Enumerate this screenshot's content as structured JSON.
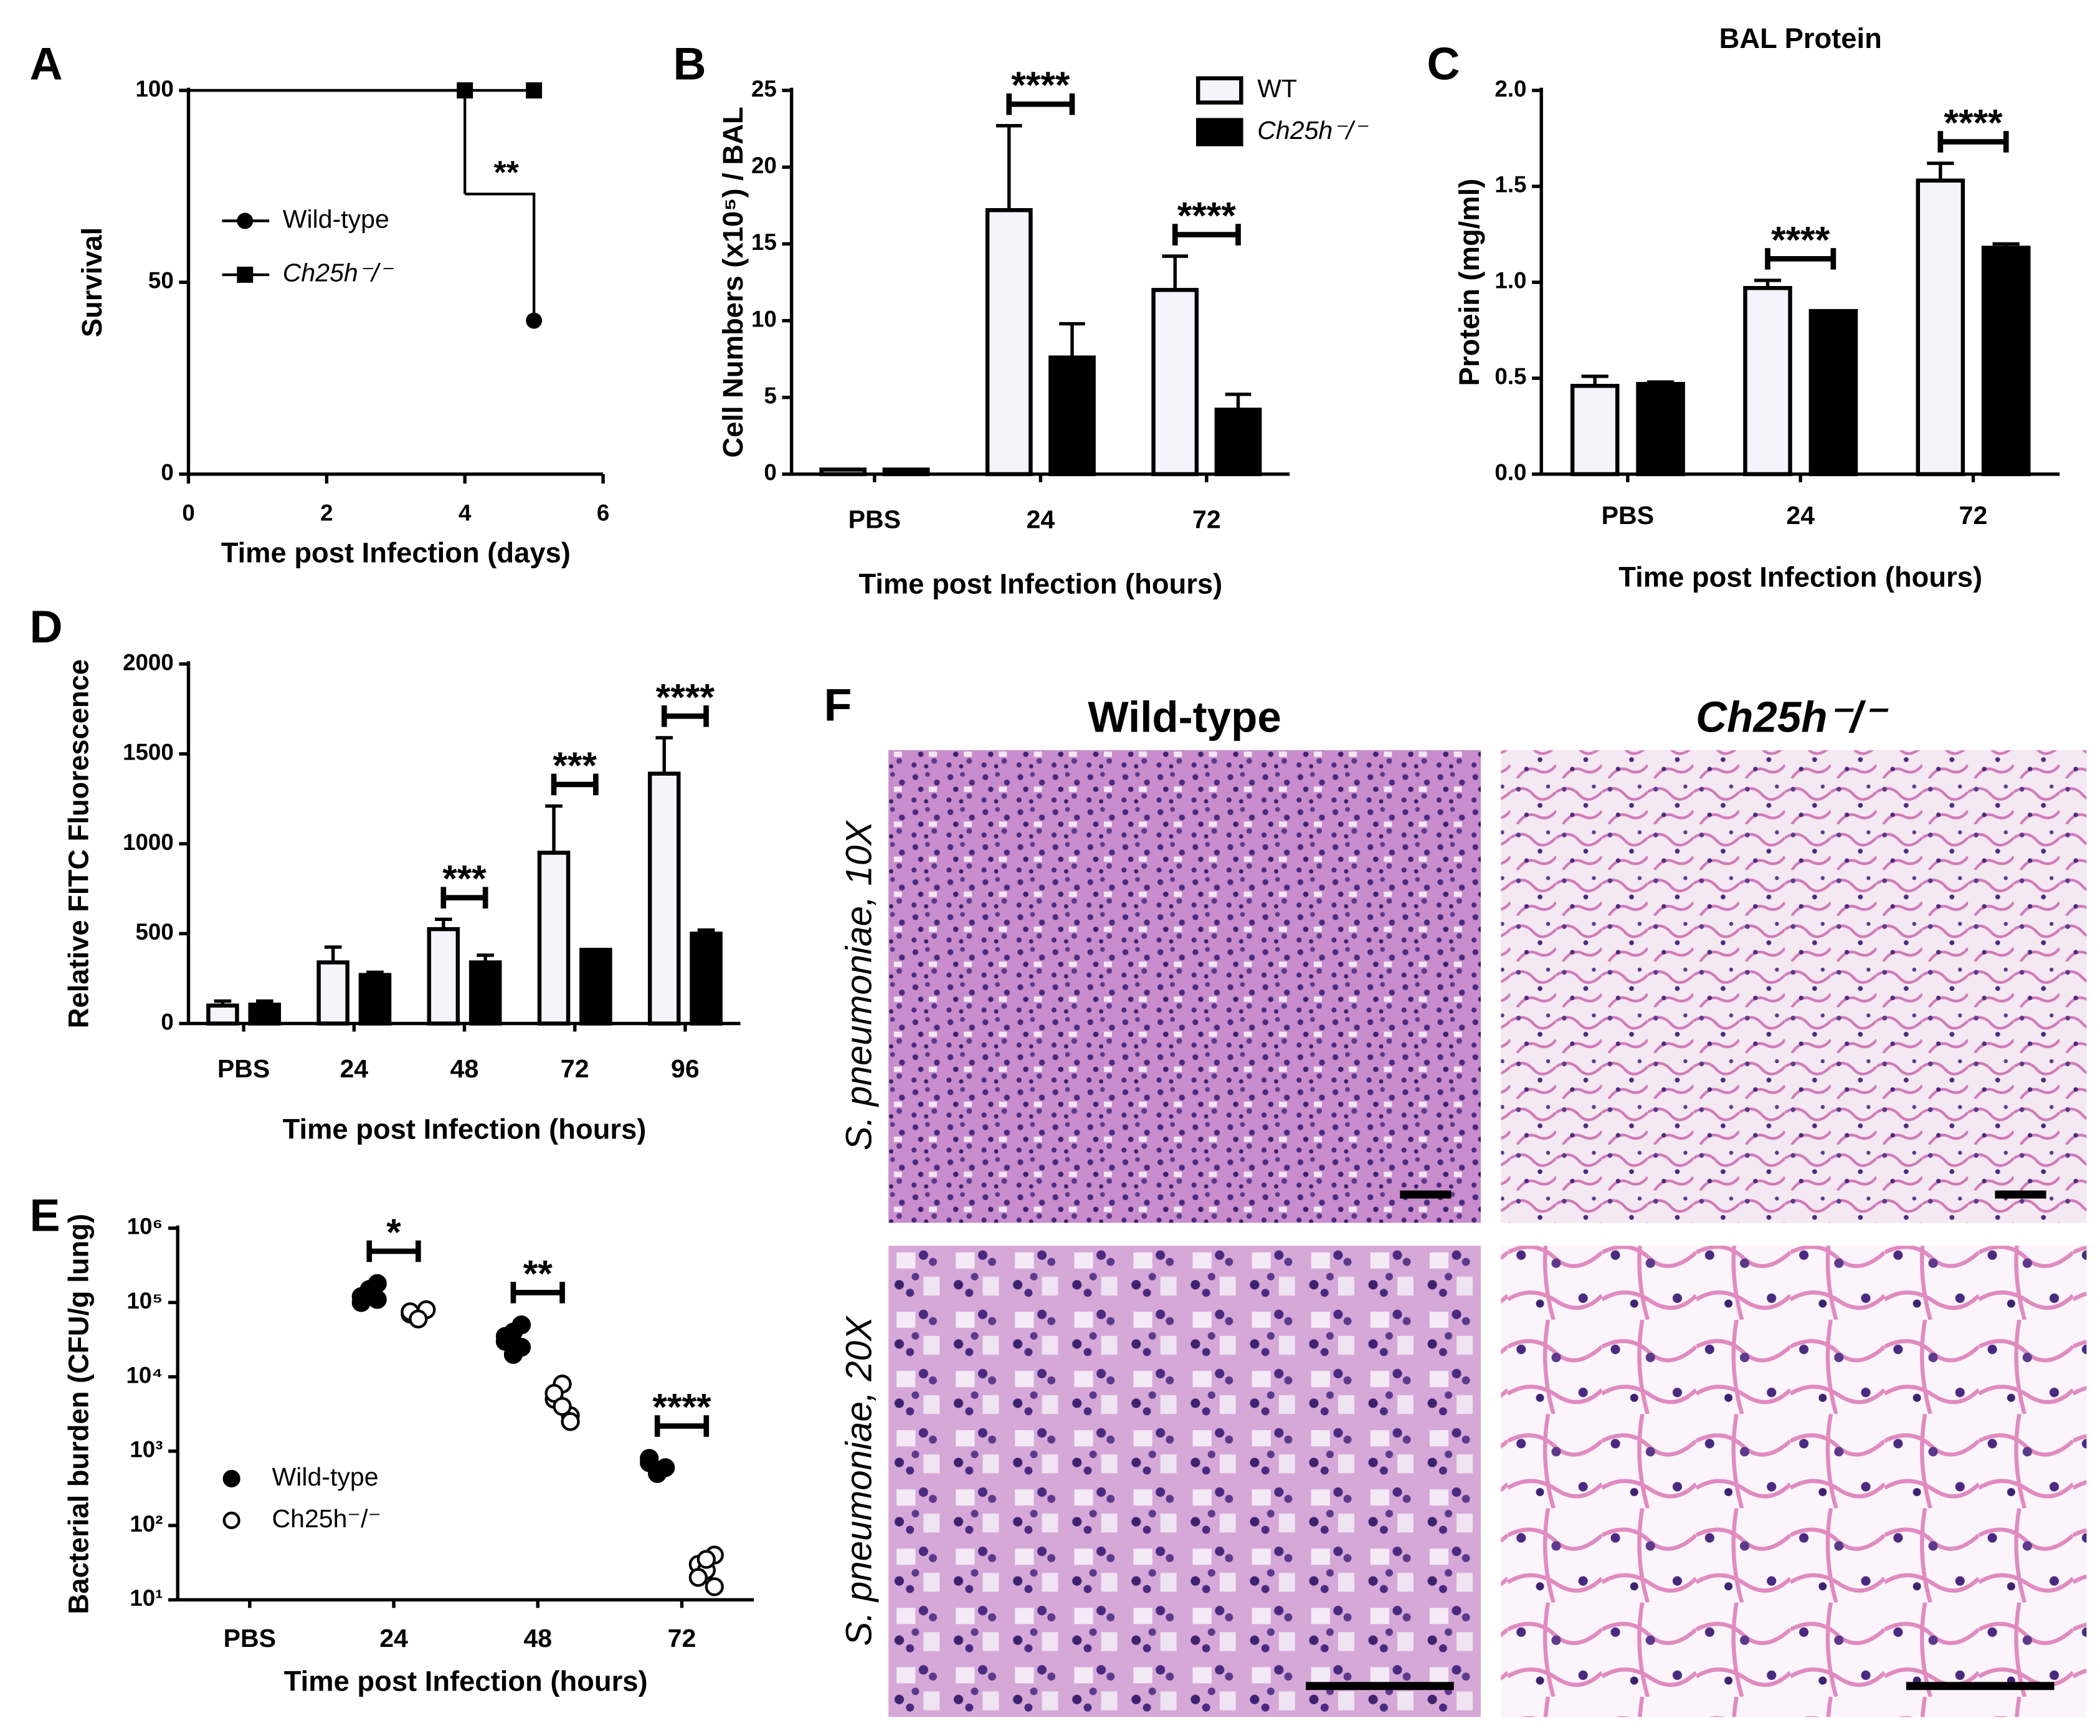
{
  "chart_data": [
    {
      "panel": "A",
      "type": "survival",
      "xlabel": "Time post Infection (days)",
      "ylabel": "Survival",
      "xlim": [
        0,
        6
      ],
      "xticks": [
        0,
        2,
        4,
        6
      ],
      "ylim": [
        0,
        100
      ],
      "yticks": [
        0,
        50,
        100
      ],
      "legend": "center-left",
      "series": [
        {
          "name": "Wild-type",
          "color": "#000000",
          "marker": "circle",
          "x": [
            0,
            4,
            5
          ],
          "values": [
            100,
            73,
            40
          ]
        },
        {
          "name": "Ch25h⁻/⁻",
          "color": "#000000",
          "marker": "square",
          "italic": true,
          "x": [
            0,
            4,
            5
          ],
          "values": [
            100,
            100,
            100
          ]
        }
      ],
      "annotations": [
        {
          "text": "**",
          "x": 4.6,
          "y": 78
        }
      ]
    },
    {
      "panel": "B",
      "type": "bar",
      "xlabel": "Time post Infection (hours)",
      "ylabel": "Cell Numbers (x10⁵) / BAL",
      "categories": [
        "PBS",
        "24",
        "72"
      ],
      "ylim": [
        0,
        25
      ],
      "yticks": [
        0,
        5,
        10,
        15,
        20,
        25
      ],
      "legend": "upper-right",
      "series": [
        {
          "name": "WT",
          "color": "#f5f3fb",
          "values": [
            0.3,
            17.2,
            12
          ],
          "errors": [
            0,
            5.5,
            2.2
          ]
        },
        {
          "name": "Ch25h⁻/⁻",
          "color": "#000000",
          "italic": true,
          "values": [
            0.3,
            7.6,
            4.2
          ],
          "errors": [
            0,
            2.2,
            1.0
          ]
        }
      ],
      "annotations": [
        {
          "category": "24",
          "text": "****"
        },
        {
          "category": "72",
          "text": "****"
        }
      ]
    },
    {
      "panel": "C",
      "type": "bar",
      "title": "BAL Protein",
      "xlabel": "Time post Infection (hours)",
      "ylabel": "Protein (mg/ml)",
      "categories": [
        "PBS",
        "24",
        "72"
      ],
      "ylim": [
        0,
        2
      ],
      "yticks": [
        {
          "value": 0,
          "label": "0.0"
        },
        0.5,
        {
          "value": 1,
          "label": "1.0"
        },
        1.5,
        {
          "value": 2,
          "label": "2.0"
        }
      ],
      "series": [
        {
          "color": "#f5f3fb",
          "values": [
            0.46,
            0.97,
            1.53
          ],
          "errors": [
            0.05,
            0.04,
            0.09
          ]
        },
        {
          "color": "#000000",
          "values": [
            0.47,
            0.85,
            1.18
          ],
          "errors": [
            0.01,
            0,
            0.02
          ]
        }
      ],
      "annotations": [
        {
          "category": "24",
          "text": "****"
        },
        {
          "category": "72",
          "text": "****"
        }
      ]
    },
    {
      "panel": "D",
      "type": "bar",
      "xlabel": "Time post Infection (hours)",
      "ylabel": "Relative FITC Fluorescence",
      "categories": [
        "PBS",
        "24",
        "48",
        "72",
        "96"
      ],
      "ylim": [
        0,
        2000
      ],
      "yticks": [
        0,
        500,
        1000,
        1500,
        2000
      ],
      "series": [
        {
          "color": "#f5f3fb",
          "values": [
            100,
            340,
            525,
            950,
            1390
          ],
          "errors": [
            25,
            85,
            55,
            260,
            200
          ]
        },
        {
          "color": "#000000",
          "values": [
            105,
            270,
            340,
            410,
            500
          ],
          "errors": [
            20,
            15,
            40,
            0,
            20
          ]
        }
      ],
      "annotations": [
        {
          "category": "48",
          "text": "***"
        },
        {
          "category": "72",
          "text": "***"
        },
        {
          "category": "96",
          "text": "****"
        }
      ]
    },
    {
      "panel": "E",
      "type": "strip",
      "xlabel": "Time post Infection (hours)",
      "ylabel": "Bacterial burden (CFU/g lung)",
      "categories": [
        "PBS",
        "24",
        "48",
        "72"
      ],
      "log_y": true,
      "ylim": [
        10,
        1000000
      ],
      "yticks": [
        {
          "value": 10,
          "label": "10¹"
        },
        {
          "value": 100,
          "label": "10²"
        },
        {
          "value": 1000,
          "label": "10³"
        },
        {
          "value": 10000,
          "label": "10⁴"
        },
        {
          "value": 100000,
          "label": "10⁵"
        },
        {
          "value": 1000000,
          "label": "10⁶"
        }
      ],
      "legend": "lower-left",
      "series": [
        {
          "name": "Wild-type",
          "color": "#000000",
          "values": [
            [],
            [
              120000,
              150000,
              180000,
              100000,
              140000,
              110000
            ],
            [
              30000,
              40000,
              25000,
              35000,
              20000,
              50000
            ],
            [
              700,
              500,
              600,
              800,
              550
            ]
          ]
        },
        {
          "name": "Ch25h⁻/⁻",
          "color": "#ffffff",
          "values": [
            [],
            [
              70000,
              65000,
              80000,
              75000,
              60000
            ],
            [
              5000,
              8000,
              3000,
              6000,
              4000,
              2500
            ],
            [
              30,
              25,
              40,
              20,
              35,
              15
            ]
          ]
        }
      ],
      "annotations": [
        {
          "category": "24",
          "text": "*"
        },
        {
          "category": "48",
          "text": "**"
        },
        {
          "category": "72",
          "text": "****"
        }
      ]
    }
  ],
  "histology": {
    "panel": "F",
    "columns": [
      "Wild-type",
      "Ch25h⁻/⁻"
    ],
    "rows": [
      "S. pneumoniae, 10X",
      "S. pneumoniae, 20X"
    ]
  }
}
